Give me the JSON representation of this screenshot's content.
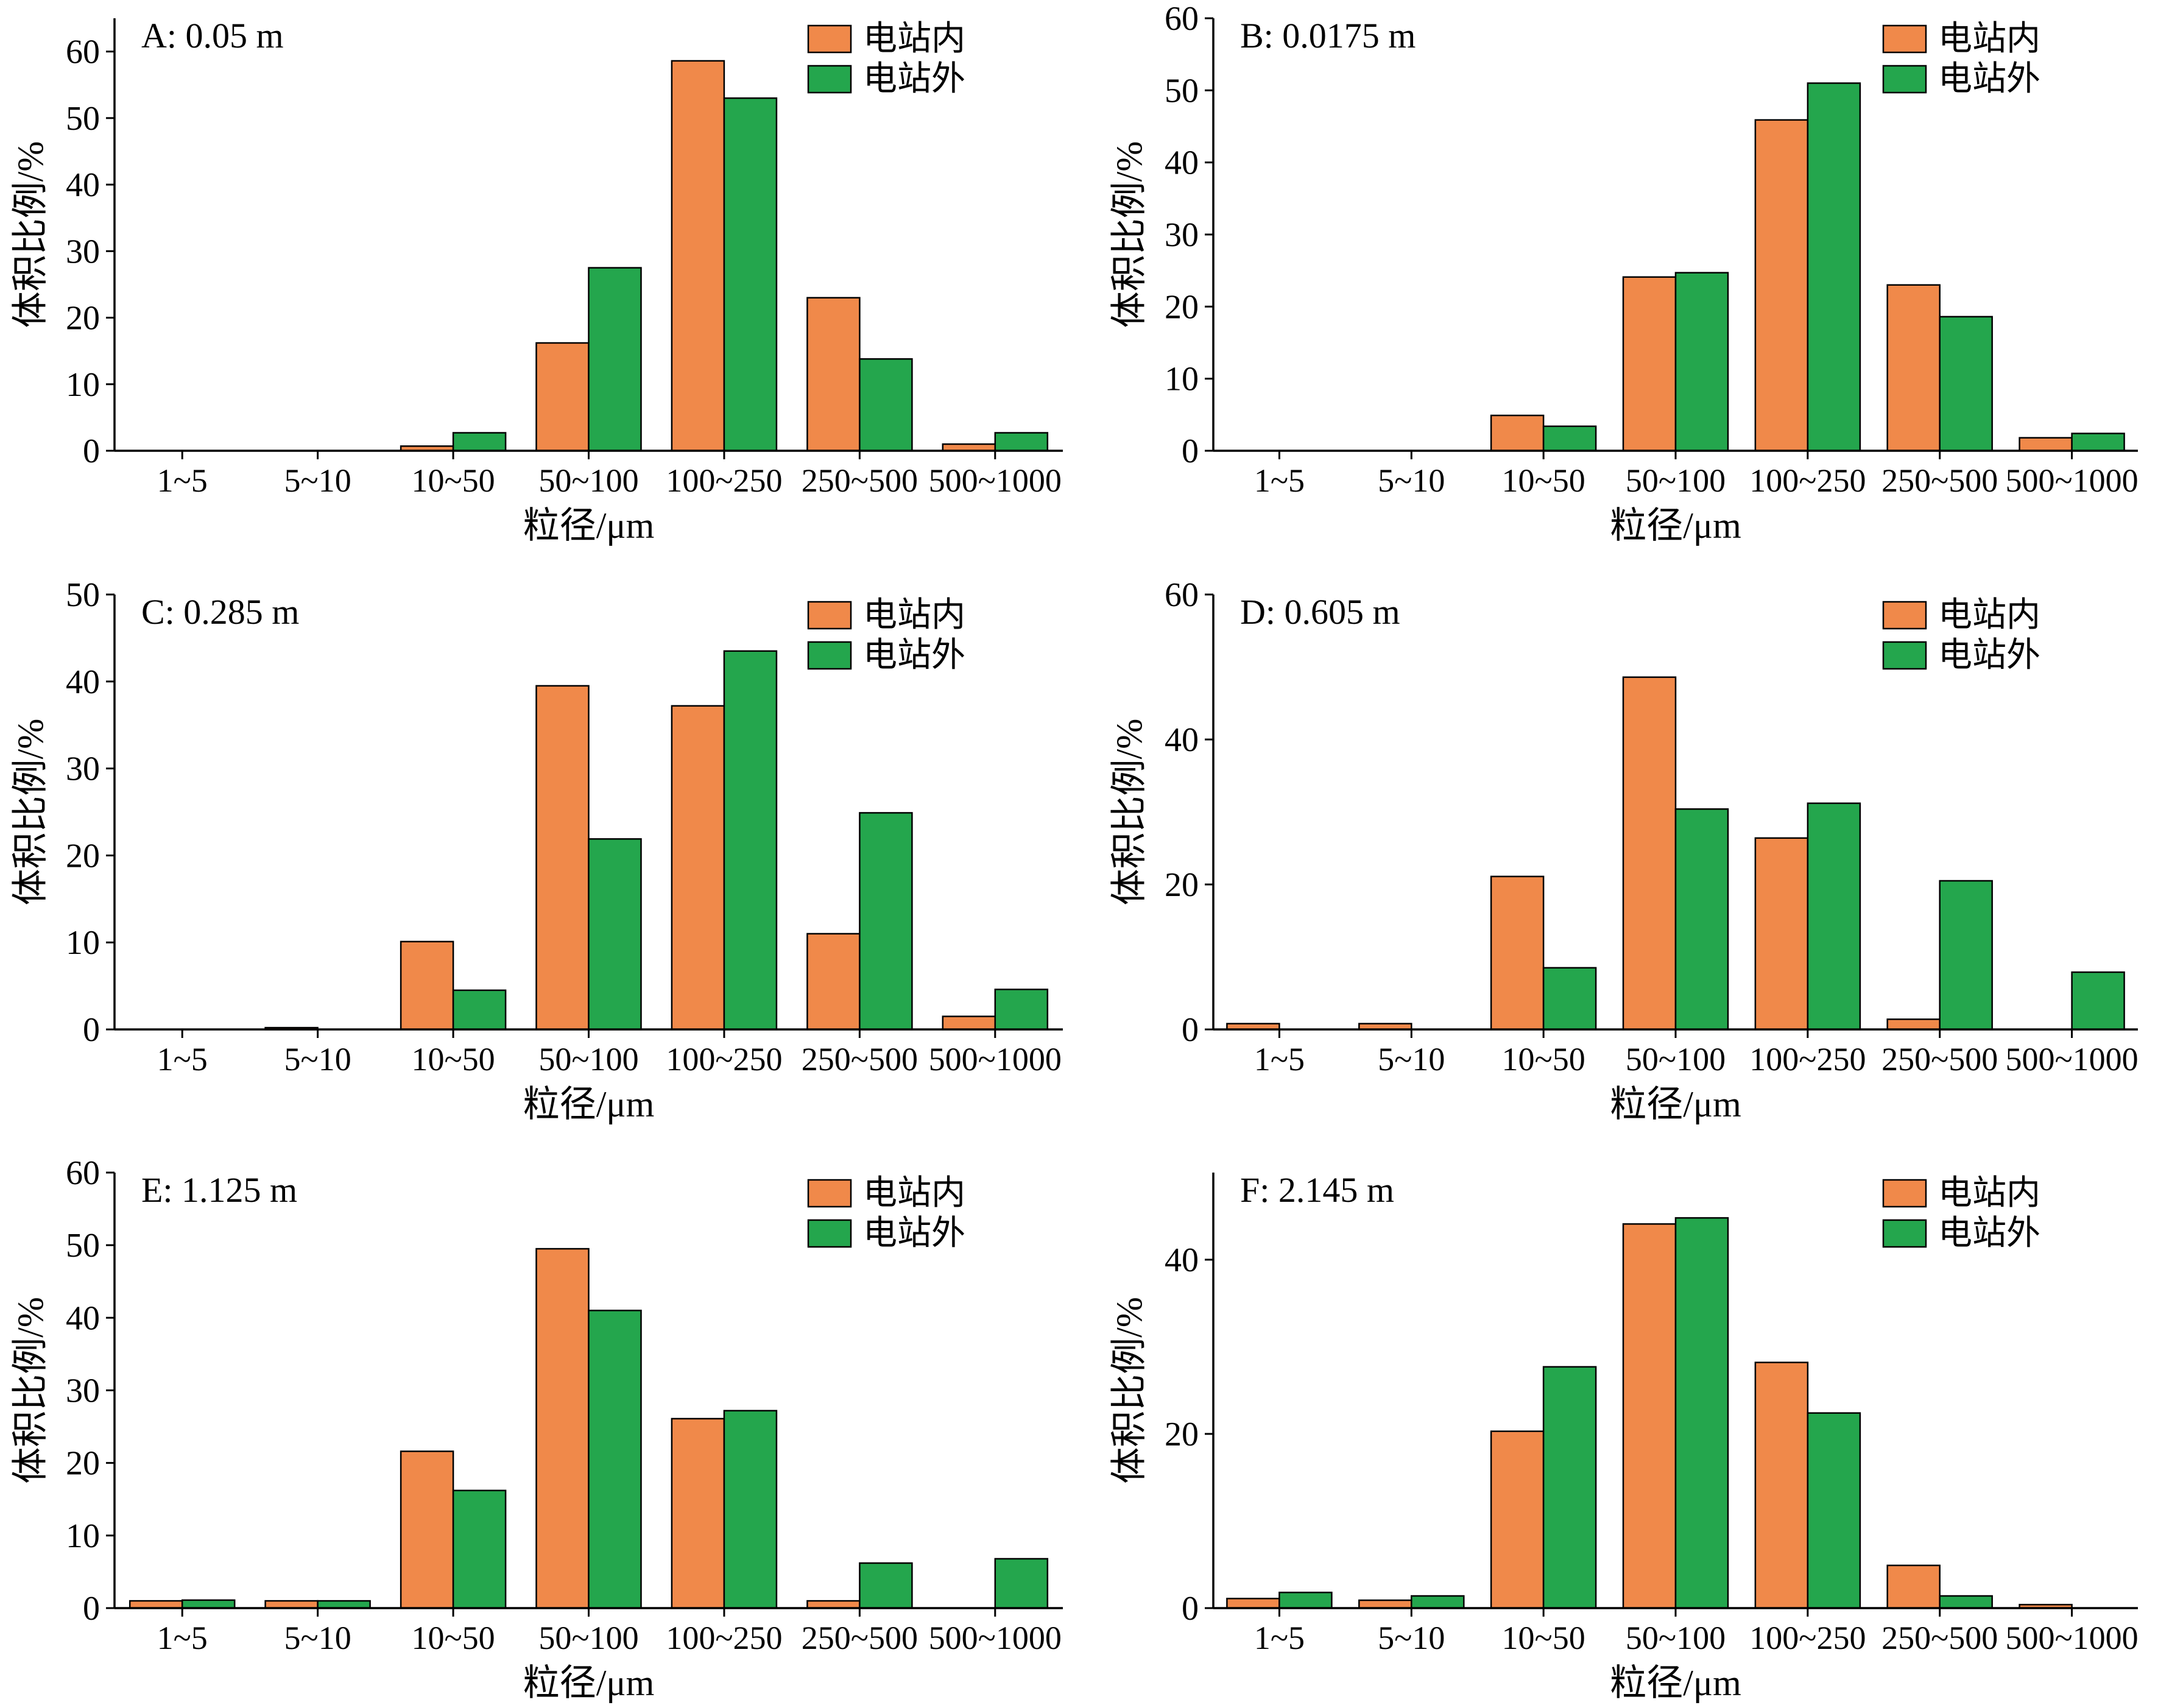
{
  "colors": {
    "inside": "#f0894a",
    "outside": "#24a64d",
    "axis": "#000000"
  },
  "chart_data": [
    {
      "type": "bar",
      "panel": "A",
      "title": "A: 0.05 m",
      "xlabel": "粒径/μm",
      "ylabel": "体积比例/%",
      "categories": [
        "1~5",
        "5~10",
        "10~50",
        "50~100",
        "100~250",
        "250~500",
        "500~1000"
      ],
      "ylim": [
        0,
        65
      ],
      "yticks": [
        0,
        10,
        20,
        30,
        40,
        50,
        60
      ],
      "legend_position": "top-right",
      "series": [
        {
          "name": "电站内",
          "values": [
            0,
            0,
            0.7,
            16.2,
            58.6,
            23.0,
            1.0
          ]
        },
        {
          "name": "电站外",
          "values": [
            0,
            0,
            2.7,
            27.5,
            53.0,
            13.8,
            2.7
          ]
        }
      ]
    },
    {
      "type": "bar",
      "panel": "B",
      "title": "B: 0.0175 m",
      "xlabel": "粒径/μm",
      "ylabel": "体积比例/%",
      "categories": [
        "1~5",
        "5~10",
        "10~50",
        "50~100",
        "100~250",
        "250~500",
        "500~1000"
      ],
      "ylim": [
        0,
        60
      ],
      "yticks": [
        0,
        10,
        20,
        30,
        40,
        50,
        60
      ],
      "legend_position": "top-right",
      "series": [
        {
          "name": "电站内",
          "values": [
            0,
            0,
            4.9,
            24.1,
            45.9,
            23.0,
            1.8
          ]
        },
        {
          "name": "电站外",
          "values": [
            0,
            0,
            3.4,
            24.7,
            51.0,
            18.6,
            2.4
          ]
        }
      ]
    },
    {
      "type": "bar",
      "panel": "C",
      "title": "C: 0.285 m",
      "xlabel": "粒径/μm",
      "ylabel": "体积比例/%",
      "categories": [
        "1~5",
        "5~10",
        "10~50",
        "50~100",
        "100~250",
        "250~500",
        "500~1000"
      ],
      "ylim": [
        0,
        50
      ],
      "yticks": [
        0,
        10,
        20,
        30,
        40,
        50
      ],
      "legend_position": "top-right",
      "series": [
        {
          "name": "电站内",
          "values": [
            0,
            0.2,
            10.1,
            39.5,
            37.2,
            11.0,
            1.5
          ]
        },
        {
          "name": "电站外",
          "values": [
            0,
            0,
            4.5,
            21.9,
            43.5,
            24.9,
            4.6
          ]
        }
      ]
    },
    {
      "type": "bar",
      "panel": "D",
      "title": "D: 0.605 m",
      "xlabel": "粒径/μm",
      "ylabel": "体积比例/%",
      "categories": [
        "1~5",
        "5~10",
        "10~50",
        "50~100",
        "100~250",
        "250~500",
        "500~1000"
      ],
      "ylim": [
        0,
        60
      ],
      "yticks": [
        0,
        20,
        40,
        60
      ],
      "legend_position": "top-right",
      "series": [
        {
          "name": "电站内",
          "values": [
            0.8,
            0.8,
            21.1,
            48.6,
            26.4,
            1.4,
            0
          ]
        },
        {
          "name": "电站外",
          "values": [
            0,
            0,
            8.5,
            30.4,
            31.2,
            20.5,
            7.9
          ]
        }
      ]
    },
    {
      "type": "bar",
      "panel": "E",
      "title": "E: 1.125 m",
      "xlabel": "粒径/μm",
      "ylabel": "体积比例/%",
      "categories": [
        "1~5",
        "5~10",
        "10~50",
        "50~100",
        "100~250",
        "250~500",
        "500~1000"
      ],
      "ylim": [
        0,
        60
      ],
      "yticks": [
        0,
        10,
        20,
        30,
        40,
        50,
        60
      ],
      "legend_position": "top-right",
      "series": [
        {
          "name": "电站内",
          "values": [
            1.0,
            1.0,
            21.6,
            49.5,
            26.1,
            1.0,
            0
          ]
        },
        {
          "name": "电站外",
          "values": [
            1.1,
            1.0,
            16.2,
            41.0,
            27.2,
            6.2,
            6.8
          ]
        }
      ]
    },
    {
      "type": "bar",
      "panel": "F",
      "title": "F: 2.145 m",
      "xlabel": "粒径/μm",
      "ylabel": "体积比例/%",
      "categories": [
        "1~5",
        "5~10",
        "10~50",
        "50~100",
        "100~250",
        "250~500",
        "500~1000"
      ],
      "ylim": [
        0,
        50
      ],
      "yticks": [
        0,
        20,
        40
      ],
      "legend_position": "top-right",
      "series": [
        {
          "name": "电站内",
          "values": [
            1.1,
            0.9,
            20.3,
            44.1,
            28.2,
            4.9,
            0.4
          ]
        },
        {
          "name": "电站外",
          "values": [
            1.8,
            1.4,
            27.7,
            44.8,
            22.4,
            1.4,
            0
          ]
        }
      ]
    }
  ]
}
